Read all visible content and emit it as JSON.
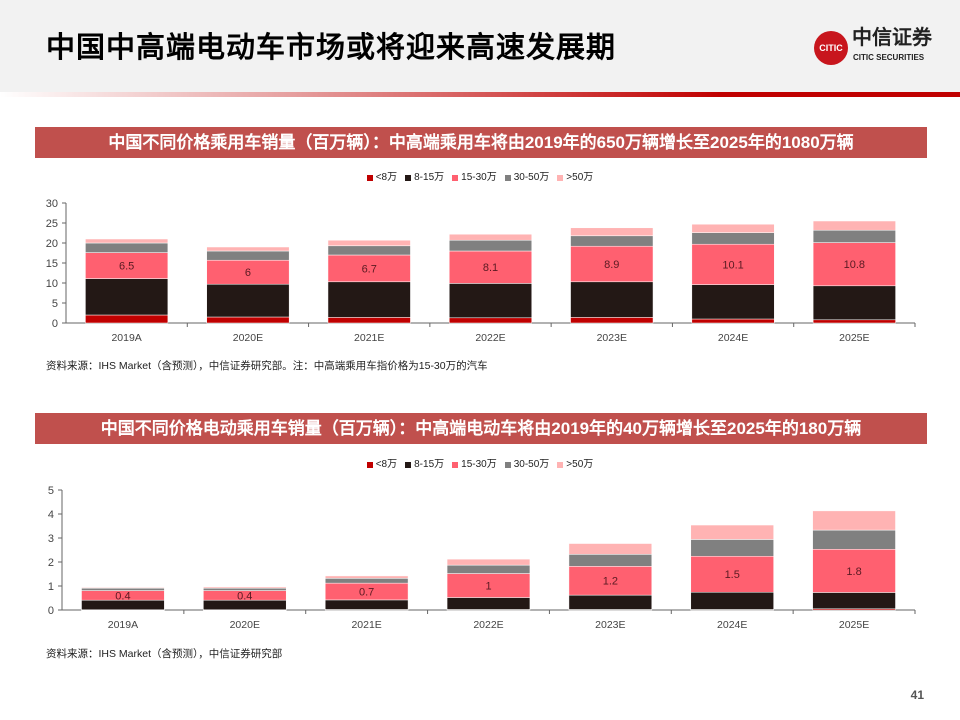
{
  "header": {
    "title": "中国中高端电动车市场或将迎来高速发展期",
    "logo_cn": "中信证券",
    "logo_en": "CITIC SECURITIES",
    "logo_mark": "CITIC"
  },
  "page_number": "41",
  "legend": [
    "<8万",
    "8-15万",
    "15-30万",
    "30-50万",
    ">50万"
  ],
  "colors": [
    "#c00000",
    "#231815",
    "#ff6070",
    "#808080",
    "#ffb3b3"
  ],
  "chart_data": [
    {
      "type": "bar",
      "stacked": true,
      "title": "中国不同价格乘用车销量（百万辆）：中高端乘用车将由2019年的650万辆增长至2025年的1080万辆",
      "categories": [
        "2019A",
        "2020E",
        "2021E",
        "2022E",
        "2023E",
        "2024E",
        "2025E"
      ],
      "ylim": [
        0,
        30
      ],
      "yticks": [
        0,
        5,
        10,
        15,
        20,
        25,
        30
      ],
      "series": [
        {
          "name": "<8万",
          "values": [
            2.0,
            1.5,
            1.4,
            1.3,
            1.4,
            1.0,
            0.8
          ]
        },
        {
          "name": "8-15万",
          "values": [
            9.1,
            8.2,
            8.9,
            8.6,
            8.9,
            8.6,
            8.5
          ]
        },
        {
          "name": "15-30万",
          "values": [
            6.5,
            6,
            6.7,
            8.1,
            8.9,
            10.1,
            10.8
          ],
          "labels": [
            "6.5",
            "6",
            "6.7",
            "8.1",
            "8.9",
            "10.1",
            "10.8"
          ]
        },
        {
          "name": "30-50万",
          "values": [
            2.4,
            2.3,
            2.3,
            2.7,
            2.6,
            2.9,
            3.1
          ]
        },
        {
          "name": ">50万",
          "values": [
            1.0,
            1.0,
            1.4,
            1.5,
            2.0,
            2.1,
            2.3
          ]
        }
      ],
      "source": "资料来源：IHS Market（含预测），中信证券研究部。注：中高端乘用车指价格为15-30万的汽车"
    },
    {
      "type": "bar",
      "stacked": true,
      "title": "中国不同价格电动乘用车销量（百万辆）：中高端电动车将由2019年的40万辆增长至2025年的180万辆",
      "categories": [
        "2019A",
        "2020E",
        "2021E",
        "2022E",
        "2023E",
        "2024E",
        "2025E"
      ],
      "ylim": [
        0,
        5
      ],
      "yticks": [
        0,
        1,
        2,
        3,
        4,
        5
      ],
      "series": [
        {
          "name": "<8万",
          "values": [
            0.01,
            0.01,
            0.02,
            0.02,
            0.02,
            0.02,
            0.05
          ]
        },
        {
          "name": "8-15万",
          "values": [
            0.4,
            0.4,
            0.4,
            0.5,
            0.6,
            0.72,
            0.68
          ]
        },
        {
          "name": "15-30万",
          "values": [
            0.4,
            0.4,
            0.7,
            1,
            1.2,
            1.5,
            1.8
          ],
          "labels": [
            "0.4",
            "0.4",
            "0.7",
            "1",
            "1.2",
            "1.5",
            "1.8"
          ]
        },
        {
          "name": "30-50万",
          "values": [
            0.1,
            0.1,
            0.2,
            0.35,
            0.5,
            0.7,
            0.8
          ]
        },
        {
          "name": ">50万",
          "values": [
            0.03,
            0.05,
            0.1,
            0.25,
            0.45,
            0.6,
            0.8
          ]
        }
      ],
      "source": "资料来源：IHS Market（含预测），中信证券研究部"
    }
  ]
}
